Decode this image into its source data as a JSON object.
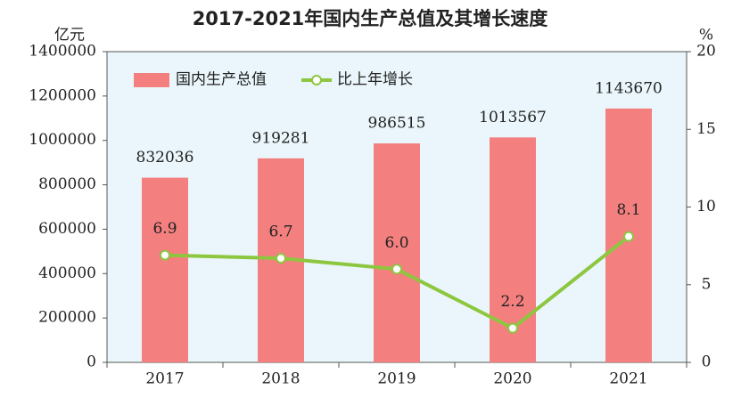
{
  "chart_data": {
    "type": "bar",
    "title": "2017-2021年国内生产总值及其增长速度",
    "y_label": "亿元",
    "y2_label": "%",
    "categories": [
      "2017",
      "2018",
      "2019",
      "2020",
      "2021"
    ],
    "series": [
      {
        "name": "国内生产总值",
        "type": "bar",
        "color": "#f47f7f",
        "values": [
          832036,
          919281,
          986515,
          1013567,
          1143670
        ]
      },
      {
        "name": "比上年增长",
        "type": "line",
        "axis": "y2",
        "color": "#8dc63f",
        "values": [
          6.9,
          6.7,
          6.0,
          2.2,
          8.1
        ],
        "value_labels": [
          "6.9",
          "6.7",
          "6.0",
          "2.2",
          "8.1"
        ]
      }
    ],
    "ylim": [
      0,
      1400000
    ],
    "yticks": [
      0,
      200000,
      400000,
      600000,
      800000,
      1000000,
      1200000,
      1400000
    ],
    "y2lim": [
      0,
      20
    ],
    "y2ticks": [
      0,
      5,
      10,
      15,
      20
    ],
    "legend": "top-left",
    "background": "#eaf6fb"
  }
}
